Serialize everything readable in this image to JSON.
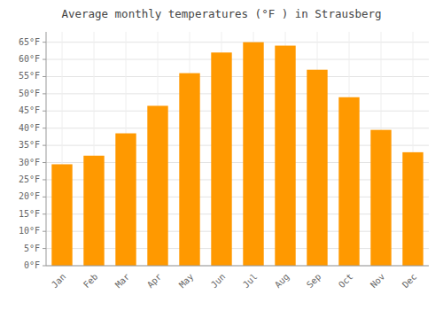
{
  "chart_data": {
    "type": "bar",
    "title": "Average monthly temperatures (°F ) in Strausberg",
    "categories": [
      "Jan",
      "Feb",
      "Mar",
      "Apr",
      "May",
      "Jun",
      "Jul",
      "Aug",
      "Sep",
      "Oct",
      "Nov",
      "Dec"
    ],
    "values": [
      29.5,
      32.0,
      38.5,
      46.5,
      56.0,
      62.0,
      65.0,
      64.0,
      57.0,
      49.0,
      39.5,
      33.0
    ],
    "color": "#FF9900",
    "ylim": [
      0,
      68
    ],
    "yticks": [
      {
        "value": 0,
        "label": "0°F"
      },
      {
        "value": 5,
        "label": "5°F"
      },
      {
        "value": 10,
        "label": "10°F"
      },
      {
        "value": 15,
        "label": "15°F"
      },
      {
        "value": 20,
        "label": "20°F"
      },
      {
        "value": 25,
        "label": "25°F"
      },
      {
        "value": 30,
        "label": "30°F"
      },
      {
        "value": 35,
        "label": "35°F"
      },
      {
        "value": 40,
        "label": "40°F"
      },
      {
        "value": 45,
        "label": "45°F"
      },
      {
        "value": 50,
        "label": "50°F"
      },
      {
        "value": 55,
        "label": "55°F"
      },
      {
        "value": 60,
        "label": "60°F"
      },
      {
        "value": 65,
        "label": "65°F"
      }
    ],
    "grid": true
  }
}
